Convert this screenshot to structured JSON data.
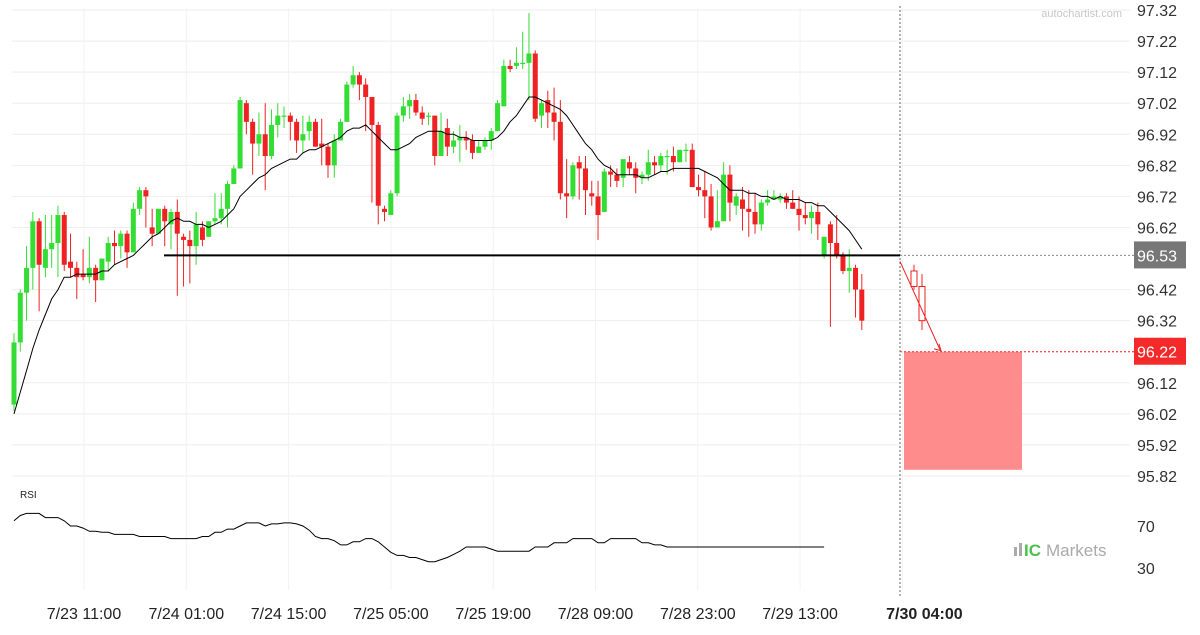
{
  "watermark": "autochartist.com",
  "brand": {
    "prefix": "IC",
    "name": "Markets"
  },
  "chart_data": {
    "type": "candlestick",
    "price_axis": {
      "ticks": [
        "97.32",
        "97.22",
        "97.12",
        "97.02",
        "96.92",
        "96.82",
        "96.72",
        "96.62",
        "96.42",
        "96.32",
        "96.12",
        "96.02",
        "95.92",
        "95.82"
      ],
      "ylim": [
        95.78,
        97.35
      ]
    },
    "time_axis": {
      "labels": [
        "7/23 11:00",
        "7/24 01:00",
        "7/24 15:00",
        "7/25 05:00",
        "7/25 19:00",
        "7/28 09:00",
        "7/28 23:00",
        "7/29 13:00",
        "7/30 04:00"
      ],
      "highlight_label": "7/30 04:00"
    },
    "price_labels": [
      {
        "value": 96.53,
        "text": "96.53",
        "color": "#777777"
      },
      {
        "value": 96.22,
        "text": "96.22",
        "color": "#f42a2a"
      }
    ],
    "pattern": {
      "support_level": 96.53,
      "breakout_time": "7/30 04:00",
      "target_price": 96.22,
      "target_zone": [
        95.84,
        96.22
      ],
      "zone_color": "#ff8c8c",
      "line_color": "#000000"
    },
    "colors": {
      "up": "#33dd33",
      "down": "#ee2222",
      "ma": "#000000",
      "rsi": "#000000"
    },
    "candles": [
      [
        96.05,
        96.28,
        96.25,
        96.03
      ],
      [
        96.25,
        96.42,
        96.41,
        96.22
      ],
      [
        96.41,
        96.56,
        96.49,
        96.32
      ],
      [
        96.49,
        96.67,
        96.64,
        96.42
      ],
      [
        96.64,
        96.65,
        96.5,
        96.35
      ],
      [
        96.49,
        96.66,
        96.55,
        96.46
      ],
      [
        96.55,
        96.66,
        96.57,
        96.49
      ],
      [
        96.57,
        96.69,
        96.66,
        96.46
      ],
      [
        96.66,
        96.67,
        96.5,
        96.48
      ],
      [
        96.51,
        96.6,
        96.49,
        96.46
      ],
      [
        96.49,
        96.51,
        96.46,
        96.39
      ],
      [
        96.47,
        96.55,
        96.46,
        96.45
      ],
      [
        96.46,
        96.59,
        96.49,
        96.44
      ],
      [
        96.49,
        96.5,
        96.45,
        96.38
      ],
      [
        96.45,
        96.52,
        96.52,
        96.45
      ],
      [
        96.51,
        96.59,
        96.57,
        96.48
      ],
      [
        96.57,
        96.61,
        96.56,
        96.5
      ],
      [
        96.56,
        96.61,
        96.6,
        96.52
      ],
      [
        96.6,
        96.61,
        96.54,
        96.49
      ],
      [
        96.54,
        96.7,
        96.68,
        96.54
      ],
      [
        96.68,
        96.75,
        96.74,
        96.66
      ],
      [
        96.74,
        96.75,
        96.72,
        96.62
      ],
      [
        96.62,
        96.68,
        96.6,
        96.56
      ],
      [
        96.6,
        96.68,
        96.68,
        96.6
      ],
      [
        96.68,
        96.69,
        96.64,
        96.56
      ],
      [
        96.63,
        96.68,
        96.67,
        96.55
      ],
      [
        96.67,
        96.71,
        96.6,
        96.4
      ],
      [
        96.59,
        96.6,
        96.58,
        96.43
      ],
      [
        96.58,
        96.61,
        96.56,
        96.44
      ],
      [
        96.56,
        96.67,
        96.63,
        96.5
      ],
      [
        96.62,
        96.64,
        96.58,
        96.56
      ],
      [
        96.59,
        96.64,
        96.64,
        96.59
      ],
      [
        96.64,
        96.73,
        96.65,
        96.63
      ],
      [
        96.65,
        96.73,
        96.68,
        96.63
      ],
      [
        96.68,
        96.77,
        96.76,
        96.62
      ],
      [
        96.76,
        96.82,
        96.81,
        96.76
      ],
      [
        96.81,
        97.04,
        97.03,
        96.81
      ],
      [
        97.02,
        97.03,
        96.96,
        96.92
      ],
      [
        96.96,
        96.97,
        96.89,
        96.79
      ],
      [
        96.89,
        96.99,
        96.92,
        96.85
      ],
      [
        96.92,
        97.02,
        96.85,
        96.74
      ],
      [
        96.85,
        97.0,
        96.95,
        96.84
      ],
      [
        96.95,
        97.02,
        96.98,
        96.91
      ],
      [
        96.98,
        97.01,
        96.98,
        96.94
      ],
      [
        96.98,
        96.99,
        96.96,
        96.9
      ],
      [
        96.96,
        96.97,
        96.9,
        96.86
      ],
      [
        96.9,
        96.98,
        96.92,
        96.86
      ],
      [
        96.93,
        96.98,
        96.96,
        96.9
      ],
      [
        96.96,
        96.97,
        96.88,
        96.88
      ],
      [
        96.89,
        96.97,
        96.88,
        96.82
      ],
      [
        96.88,
        96.89,
        96.82,
        96.78
      ],
      [
        96.82,
        96.92,
        96.9,
        96.78
      ],
      [
        96.9,
        96.97,
        96.96,
        96.9
      ],
      [
        96.96,
        97.09,
        97.08,
        96.96
      ],
      [
        97.08,
        97.14,
        97.11,
        97.07
      ],
      [
        97.11,
        97.12,
        97.08,
        97.03
      ],
      [
        97.08,
        97.1,
        97.04,
        96.93
      ],
      [
        97.04,
        97.04,
        96.95,
        96.7
      ],
      [
        96.95,
        96.96,
        96.69,
        96.63
      ],
      [
        96.68,
        96.69,
        96.67,
        96.64
      ],
      [
        96.66,
        96.74,
        96.73,
        96.66
      ],
      [
        96.73,
        96.99,
        96.98,
        96.72
      ],
      [
        96.98,
        97.04,
        97.01,
        96.96
      ],
      [
        97.01,
        97.05,
        97.03,
        96.97
      ],
      [
        97.03,
        97.05,
        96.99,
        96.98
      ],
      [
        96.99,
        97.01,
        96.97,
        96.95
      ],
      [
        96.98,
        96.99,
        96.98,
        96.95
      ],
      [
        96.98,
        96.98,
        96.85,
        96.82
      ],
      [
        96.85,
        96.99,
        96.93,
        96.86
      ],
      [
        96.94,
        96.97,
        96.88,
        96.85
      ],
      [
        96.88,
        96.93,
        96.9,
        96.86
      ],
      [
        96.9,
        96.95,
        96.91,
        96.83
      ],
      [
        96.91,
        96.93,
        96.9,
        96.87
      ],
      [
        96.9,
        96.92,
        96.86,
        96.84
      ],
      [
        96.86,
        96.9,
        96.88,
        96.86
      ],
      [
        96.88,
        96.91,
        96.9,
        96.87
      ],
      [
        96.9,
        96.94,
        96.93,
        96.87
      ],
      [
        96.93,
        97.03,
        97.02,
        96.93
      ],
      [
        97.01,
        97.16,
        97.14,
        97.01
      ],
      [
        97.14,
        97.16,
        97.13,
        97.12
      ],
      [
        97.14,
        97.2,
        97.15,
        97.13
      ],
      [
        97.15,
        97.25,
        97.15,
        97.13
      ],
      [
        97.15,
        97.31,
        97.18,
        97.03
      ],
      [
        97.18,
        97.19,
        96.97,
        96.96
      ],
      [
        96.98,
        97.03,
        97.02,
        96.94
      ],
      [
        97.03,
        97.06,
        96.99,
        96.94
      ],
      [
        96.99,
        97.07,
        96.96,
        96.9
      ],
      [
        96.96,
        97.03,
        96.73,
        96.71
      ],
      [
        96.73,
        96.84,
        96.72,
        96.65
      ],
      [
        96.72,
        96.83,
        96.82,
        96.71
      ],
      [
        96.83,
        96.85,
        96.81,
        96.71
      ],
      [
        96.81,
        96.85,
        96.74,
        96.66
      ],
      [
        96.73,
        96.77,
        96.72,
        96.69
      ],
      [
        96.72,
        96.77,
        96.66,
        96.58
      ],
      [
        96.67,
        96.81,
        96.8,
        96.68
      ],
      [
        96.8,
        96.82,
        96.79,
        96.75
      ],
      [
        96.79,
        96.81,
        96.77,
        96.75
      ],
      [
        96.78,
        96.82,
        96.84,
        96.75
      ],
      [
        96.83,
        96.85,
        96.81,
        96.79
      ],
      [
        96.81,
        96.83,
        96.78,
        96.73
      ],
      [
        96.78,
        96.8,
        96.79,
        96.76
      ],
      [
        96.79,
        96.87,
        96.83,
        96.77
      ],
      [
        96.83,
        96.85,
        96.82,
        96.79
      ],
      [
        96.82,
        96.86,
        96.85,
        96.8
      ],
      [
        96.85,
        96.87,
        96.85,
        96.79
      ],
      [
        96.85,
        96.88,
        96.83,
        96.8
      ],
      [
        96.83,
        96.87,
        96.87,
        96.83
      ],
      [
        96.87,
        96.89,
        96.87,
        96.83
      ],
      [
        96.87,
        96.89,
        96.75,
        96.75
      ],
      [
        96.75,
        96.79,
        96.74,
        96.72
      ],
      [
        96.74,
        96.8,
        96.72,
        96.65
      ],
      [
        96.72,
        96.76,
        96.62,
        96.61
      ],
      [
        96.62,
        96.74,
        96.64,
        96.62
      ],
      [
        96.64,
        96.83,
        96.79,
        96.64
      ],
      [
        96.79,
        96.82,
        96.7,
        96.64
      ],
      [
        96.69,
        96.73,
        96.72,
        96.66
      ],
      [
        96.71,
        96.75,
        96.68,
        96.61
      ],
      [
        96.68,
        96.74,
        96.67,
        96.59
      ],
      [
        96.67,
        96.73,
        96.63,
        96.6
      ],
      [
        96.63,
        96.71,
        96.7,
        96.61
      ],
      [
        96.7,
        96.74,
        96.71,
        96.69
      ],
      [
        96.71,
        96.74,
        96.72,
        96.71
      ],
      [
        96.71,
        96.73,
        96.72,
        96.7
      ],
      [
        96.72,
        96.73,
        96.7,
        96.68
      ],
      [
        96.7,
        96.74,
        96.68,
        96.68
      ],
      [
        96.68,
        96.72,
        96.66,
        96.61
      ],
      [
        96.66,
        96.7,
        96.65,
        96.63
      ],
      [
        96.65,
        96.69,
        96.67,
        96.6
      ],
      [
        96.67,
        96.7,
        96.63,
        96.58
      ],
      [
        96.53,
        96.59,
        96.59,
        96.52
      ],
      [
        96.63,
        96.64,
        96.57,
        96.3
      ],
      [
        96.57,
        96.66,
        96.53,
        96.52
      ],
      [
        96.53,
        96.54,
        96.48,
        96.47
      ],
      [
        96.48,
        96.55,
        96.49,
        96.41
      ],
      [
        96.49,
        96.5,
        96.42,
        96.33
      ],
      [
        96.42,
        96.47,
        96.32,
        96.29
      ]
    ],
    "ma": [
      96.02,
      96.09,
      96.16,
      96.23,
      96.29,
      96.34,
      96.39,
      96.42,
      96.46,
      96.46,
      96.47,
      96.47,
      96.47,
      96.47,
      96.48,
      96.48,
      96.5,
      96.51,
      96.52,
      96.53,
      96.55,
      96.57,
      96.59,
      96.6,
      96.62,
      96.64,
      96.65,
      96.64,
      96.64,
      96.63,
      96.63,
      96.62,
      96.63,
      96.64,
      96.66,
      96.68,
      96.72,
      96.74,
      96.76,
      96.78,
      96.79,
      96.81,
      96.82,
      96.83,
      96.84,
      96.84,
      96.86,
      96.87,
      96.87,
      96.88,
      96.89,
      96.9,
      96.91,
      96.93,
      96.94,
      96.94,
      96.95,
      96.93,
      96.91,
      96.89,
      96.87,
      96.87,
      96.88,
      96.89,
      96.91,
      96.92,
      96.93,
      96.93,
      96.93,
      96.92,
      96.92,
      96.91,
      96.91,
      96.9,
      96.9,
      96.9,
      96.9,
      96.91,
      96.93,
      96.96,
      96.98,
      97.01,
      97.04,
      97.04,
      97.03,
      97.02,
      97.01,
      97.0,
      96.98,
      96.95,
      96.92,
      96.89,
      96.87,
      96.84,
      96.82,
      96.81,
      96.79,
      96.79,
      96.79,
      96.79,
      96.78,
      96.78,
      96.79,
      96.8,
      96.8,
      96.81,
      96.81,
      96.81,
      96.81,
      96.81,
      96.8,
      96.79,
      96.78,
      96.76,
      96.74,
      96.74,
      96.74,
      96.73,
      96.73,
      96.72,
      96.72,
      96.71,
      96.72,
      96.71,
      96.71,
      96.71,
      96.7,
      96.7,
      96.69,
      96.69,
      96.67,
      96.65,
      96.63,
      96.61,
      96.58,
      96.55
    ],
    "rsi": {
      "label": "RSI",
      "ticks": [
        "70",
        "30"
      ],
      "range": [
        20,
        95
      ],
      "values": [
        75,
        80,
        82,
        82,
        82,
        78,
        78,
        78,
        75,
        70,
        70,
        68,
        65,
        65,
        64,
        64,
        62,
        62,
        62,
        62,
        60,
        60,
        60,
        60,
        60,
        58,
        58,
        58,
        58,
        58,
        60,
        60,
        64,
        64,
        67,
        67,
        70,
        73,
        73,
        73,
        70,
        72,
        72,
        73,
        73,
        72,
        70,
        66,
        60,
        58,
        58,
        56,
        52,
        52,
        55,
        55,
        58,
        58,
        55,
        50,
        45,
        42,
        42,
        40,
        40,
        38,
        36,
        36,
        38,
        40,
        43,
        46,
        50,
        50,
        50,
        50,
        48,
        46,
        46,
        46,
        46,
        46,
        46,
        50,
        50,
        50,
        54,
        54,
        54,
        58,
        58,
        58,
        58,
        54,
        54,
        58,
        58,
        58,
        58,
        58,
        54,
        54,
        52,
        52,
        50,
        50,
        50,
        50,
        50,
        50,
        50,
        50,
        50,
        50,
        50,
        50,
        50,
        50,
        50,
        50,
        50,
        50,
        50,
        50,
        50,
        50,
        50,
        50,
        50,
        50
      ]
    }
  }
}
